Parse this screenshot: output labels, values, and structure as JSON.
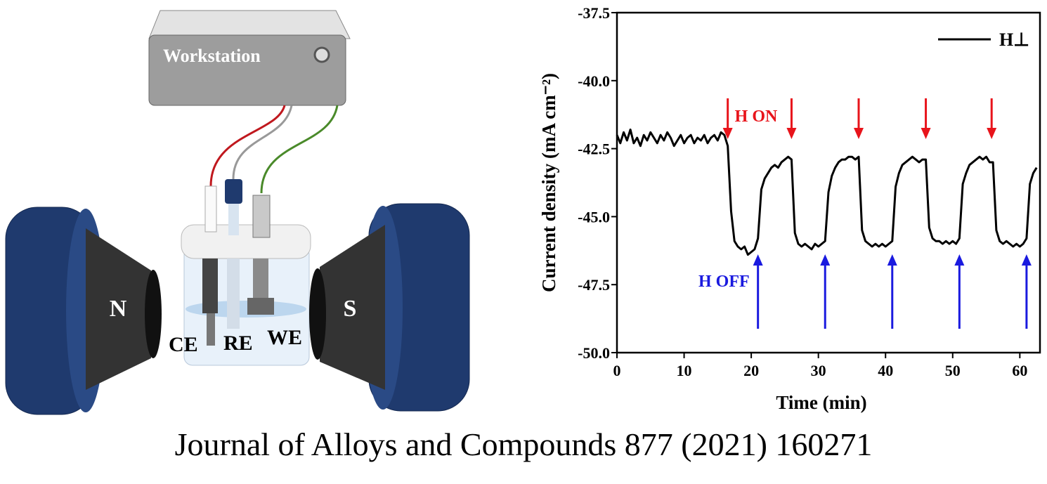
{
  "diagram": {
    "workstation": "Workstation",
    "magnet_left": "N",
    "magnet_right": "S",
    "electrodes": [
      "CE",
      "RE",
      "WE"
    ]
  },
  "chart_data": {
    "type": "line",
    "x_label": "Time (min)",
    "y_label": "Current density (mA cm⁻²)",
    "xlim": [
      0,
      63
    ],
    "ylim": [
      -50,
      -37.5
    ],
    "xticks": [
      0,
      10,
      20,
      30,
      40,
      50,
      60
    ],
    "yticks": [
      {
        "value": -50,
        "label": "-50.0"
      },
      -47.5,
      {
        "value": -45,
        "label": "-45.0"
      },
      -42.5,
      {
        "value": -40,
        "label": "-40.0"
      },
      -37.5
    ],
    "grid": false,
    "legend": "upper right",
    "x": [
      0,
      0.5,
      1,
      1.5,
      2,
      2.5,
      3,
      3.5,
      4,
      4.5,
      5,
      5.5,
      6,
      6.5,
      7,
      7.5,
      8,
      8.5,
      9,
      9.5,
      10,
      10.5,
      11,
      11.5,
      12,
      12.5,
      13,
      13.5,
      14,
      14.5,
      15,
      15.5,
      16,
      16.5,
      17,
      17.5,
      18,
      18.5,
      19,
      19.5,
      20,
      20.5,
      21,
      21.5,
      22,
      22.5,
      23,
      23.5,
      24,
      24.5,
      25,
      25.5,
      26,
      26.5,
      27,
      27.5,
      28,
      28.5,
      29,
      29.5,
      30,
      30.5,
      31,
      31.5,
      32,
      32.5,
      33,
      33.5,
      34,
      34.5,
      35,
      35.5,
      36,
      36.5,
      37,
      37.5,
      38,
      38.5,
      39,
      39.5,
      40,
      40.5,
      41,
      41.5,
      42,
      42.5,
      43,
      43.5,
      44,
      44.5,
      45,
      45.5,
      46,
      46.5,
      47,
      47.5,
      48,
      48.5,
      49,
      49.5,
      50,
      50.5,
      51,
      51.5,
      52,
      52.5,
      53,
      53.5,
      54,
      54.5,
      55,
      55.5,
      56,
      56.5,
      57,
      57.5,
      58,
      58.5,
      59,
      59.5,
      60,
      60.5,
      61,
      61.5,
      62,
      62.5
    ],
    "series": [
      {
        "name": "H⊥",
        "color": "#000000",
        "values": [
          -42.0,
          -42.3,
          -41.9,
          -42.2,
          -41.8,
          -42.3,
          -42.1,
          -42.4,
          -42.0,
          -42.2,
          -41.9,
          -42.1,
          -42.3,
          -42.0,
          -42.2,
          -41.9,
          -42.1,
          -42.4,
          -42.2,
          -42.0,
          -42.3,
          -42.1,
          -42.0,
          -42.3,
          -42.1,
          -42.2,
          -42.0,
          -42.3,
          -42.1,
          -42.0,
          -42.2,
          -41.9,
          -42.0,
          -42.4,
          -44.8,
          -45.9,
          -46.1,
          -46.2,
          -46.1,
          -46.4,
          -46.3,
          -46.2,
          -45.8,
          -44.0,
          -43.6,
          -43.4,
          -43.2,
          -43.1,
          -43.2,
          -43.0,
          -42.9,
          -42.8,
          -42.9,
          -45.6,
          -46.0,
          -46.1,
          -46.0,
          -46.1,
          -46.2,
          -46.0,
          -46.1,
          -46.0,
          -45.9,
          -44.1,
          -43.5,
          -43.2,
          -43.0,
          -42.9,
          -42.9,
          -42.8,
          -42.8,
          -42.9,
          -42.8,
          -45.5,
          -45.9,
          -46.0,
          -46.1,
          -46.0,
          -46.1,
          -46.0,
          -46.1,
          -46.0,
          -45.9,
          -43.9,
          -43.4,
          -43.1,
          -43.0,
          -42.9,
          -42.8,
          -42.9,
          -43.0,
          -42.9,
          -42.9,
          -45.4,
          -45.8,
          -45.9,
          -45.9,
          -46.0,
          -45.9,
          -46.0,
          -45.9,
          -46.0,
          -45.8,
          -43.8,
          -43.4,
          -43.1,
          -43.0,
          -42.9,
          -42.8,
          -42.9,
          -42.8,
          -43.0,
          -43.0,
          -45.5,
          -45.9,
          -46.0,
          -45.9,
          -46.0,
          -46.1,
          -46.0,
          -46.1,
          -46.0,
          -45.8,
          -43.8,
          -43.4,
          -43.2
        ]
      }
    ],
    "annotations": [
      {
        "text": "H ON",
        "color": "#e8141b",
        "times": [
          16.5,
          26,
          36,
          46,
          55.8
        ]
      },
      {
        "text": "H OFF",
        "color": "#1a1adf",
        "times": [
          21,
          31,
          41,
          51,
          61
        ]
      }
    ]
  },
  "caption": "Journal of Alloys and Compounds 877 (2021) 160271"
}
